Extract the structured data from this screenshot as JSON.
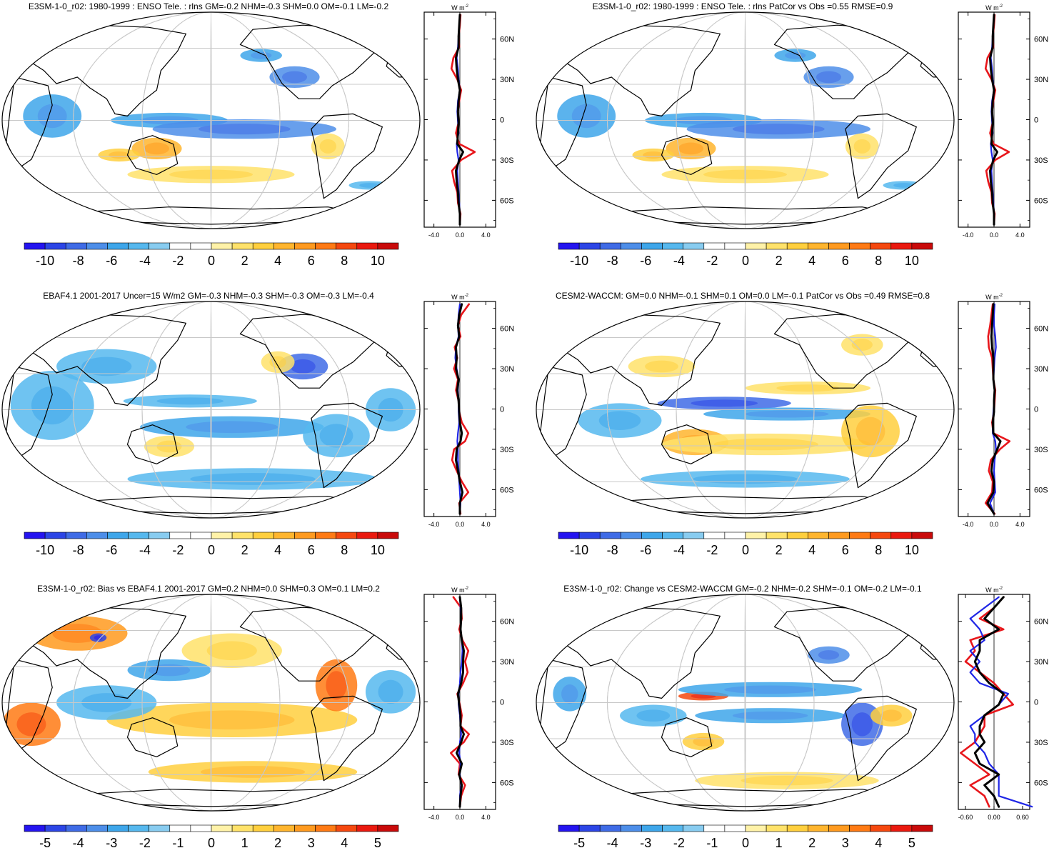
{
  "figure": {
    "units_label": "W m",
    "units_exponent": "-2",
    "colors": {
      "coastline": "#000000",
      "grid": "#c8c8c8",
      "model_line": "#e8161b",
      "reference_line": "#1f26e6",
      "mean_line": "#000000"
    }
  },
  "chart_data": [
    {
      "type": "heatmap",
      "title": "E3SM-1-0_r02: 1980-1999 : ENSO Tele. : rlns GM=-0.2 NHM=-0.3 SHM=0.0 OM=-0.1 LM=-0.2",
      "colorbar": {
        "colors": [
          "#2414f0",
          "#2c45e6",
          "#3f6be6",
          "#4d8ee9",
          "#3ea6ea",
          "#56b8ee",
          "#88ccf0",
          "#ffffff",
          "#ffffff",
          "#fff2a8",
          "#ffe26a",
          "#ffcf3e",
          "#ffb52e",
          "#ff9a1f",
          "#ff7a14",
          "#f5480f",
          "#ea190f",
          "#c90a0a"
        ],
        "tick_labels": [
          "-10",
          "-8",
          "-6",
          "-4",
          "-2",
          "0",
          "2",
          "4",
          "6",
          "8",
          "10"
        ]
      },
      "profile": {
        "lat_ticks": [
          "60N",
          "30N",
          "0",
          "30S",
          "60S"
        ],
        "x_tick_labels": [
          "-4.0",
          "0.0",
          "4.0"
        ],
        "xlim": [
          -5.5,
          5.5
        ],
        "lat": [
          78,
          70,
          62,
          54,
          46,
          38,
          30,
          22,
          14,
          6,
          -2,
          -10,
          -18,
          -24,
          -30,
          -38,
          -46,
          -54,
          -62,
          -70,
          -78
        ],
        "series": [
          {
            "name": "model",
            "values": [
              0.1,
              0.0,
              -0.2,
              -0.1,
              -1.0,
              -1.3,
              -0.4,
              0.2,
              -0.1,
              -0.3,
              -0.2,
              -0.6,
              -0.1,
              2.3,
              0.2,
              -1.2,
              -0.9,
              -0.4,
              -0.3,
              0.1,
              0.0
            ]
          },
          {
            "name": "reference",
            "values": [
              0.0,
              -0.1,
              -0.2,
              -0.3,
              -0.5,
              -0.3,
              -0.2,
              0.0,
              -0.3,
              -0.4,
              -0.3,
              -0.2,
              -0.5,
              -0.4,
              -0.2,
              -0.4,
              -0.3,
              -0.2,
              -0.1,
              0.0,
              0.0
            ]
          },
          {
            "name": "mean",
            "values": [
              0.0,
              -0.1,
              -0.2,
              -0.2,
              -0.6,
              -0.5,
              -0.3,
              0.0,
              -0.2,
              -0.3,
              -0.2,
              -0.3,
              -0.4,
              0.5,
              -0.1,
              -0.6,
              -0.5,
              -0.3,
              -0.2,
              0.0,
              0.0
            ]
          }
        ]
      }
    },
    {
      "type": "heatmap",
      "title": "E3SM-1-0_r02: 1980-1999 : ENSO Tele. : rlns PatCor vs Obs =0.55 RMSE=0.9",
      "colorbar": {
        "colors": [
          "#2414f0",
          "#2c45e6",
          "#3f6be6",
          "#4d8ee9",
          "#3ea6ea",
          "#56b8ee",
          "#88ccf0",
          "#ffffff",
          "#ffffff",
          "#fff2a8",
          "#ffe26a",
          "#ffcf3e",
          "#ffb52e",
          "#ff9a1f",
          "#ff7a14",
          "#f5480f",
          "#ea190f",
          "#c90a0a"
        ],
        "tick_labels": [
          "-10",
          "-8",
          "-6",
          "-4",
          "-2",
          "0",
          "2",
          "4",
          "6",
          "8",
          "10"
        ]
      },
      "profile": {
        "lat_ticks": [
          "60N",
          "30N",
          "0",
          "30S",
          "60S"
        ],
        "x_tick_labels": [
          "-4.0",
          "0.0",
          "4.0"
        ],
        "xlim": [
          -5.5,
          5.5
        ],
        "lat": [
          78,
          70,
          62,
          54,
          46,
          38,
          30,
          22,
          14,
          6,
          -2,
          -10,
          -18,
          -24,
          -30,
          -38,
          -46,
          -54,
          -62,
          -70,
          -78
        ],
        "series": [
          {
            "name": "model",
            "values": [
              0.1,
              0.0,
              -0.2,
              -0.1,
              -1.0,
              -1.3,
              -0.4,
              0.2,
              -0.1,
              -0.3,
              -0.2,
              -0.6,
              -0.1,
              2.3,
              0.2,
              -1.2,
              -0.9,
              -0.4,
              -0.3,
              0.1,
              0.0
            ]
          },
          {
            "name": "reference",
            "values": [
              0.0,
              -0.1,
              -0.2,
              -0.3,
              -0.5,
              -0.3,
              -0.2,
              0.0,
              -0.3,
              -0.4,
              -0.3,
              -0.2,
              -0.5,
              -0.4,
              -0.2,
              -0.4,
              -0.3,
              -0.2,
              -0.1,
              0.0,
              0.0
            ]
          },
          {
            "name": "mean",
            "values": [
              0.0,
              -0.1,
              -0.2,
              -0.2,
              -0.6,
              -0.5,
              -0.3,
              0.0,
              -0.2,
              -0.3,
              -0.2,
              -0.3,
              -0.4,
              0.5,
              -0.1,
              -0.6,
              -0.5,
              -0.3,
              -0.2,
              0.0,
              0.0
            ]
          }
        ]
      }
    },
    {
      "type": "heatmap",
      "title": "EBAF4.1 2001-2017 Uncer=15 W/m2 GM=-0.3 NHM=-0.3 SHM=-0.3 OM=-0.3 LM=-0.4",
      "colorbar": {
        "colors": [
          "#2414f0",
          "#2c45e6",
          "#3f6be6",
          "#4d8ee9",
          "#3ea6ea",
          "#56b8ee",
          "#88ccf0",
          "#ffffff",
          "#ffffff",
          "#fff2a8",
          "#ffe26a",
          "#ffcf3e",
          "#ffb52e",
          "#ff9a1f",
          "#ff7a14",
          "#f5480f",
          "#ea190f",
          "#c90a0a"
        ],
        "tick_labels": [
          "-10",
          "-8",
          "-6",
          "-4",
          "-2",
          "0",
          "2",
          "4",
          "6",
          "8",
          "10"
        ]
      },
      "profile": {
        "lat_ticks": [
          "60N",
          "30N",
          "0",
          "30S",
          "60S"
        ],
        "x_tick_labels": [
          "-4.0",
          "0.0",
          "4.0"
        ],
        "xlim": [
          -5.5,
          5.5
        ],
        "lat": [
          78,
          70,
          62,
          54,
          46,
          38,
          30,
          22,
          14,
          6,
          -2,
          -10,
          -18,
          -24,
          -30,
          -38,
          -46,
          -54,
          -62,
          -70,
          -78
        ],
        "series": [
          {
            "name": "model",
            "values": [
              1.4,
              0.2,
              -0.3,
              0.1,
              -0.8,
              -0.4,
              -0.9,
              -0.3,
              -0.6,
              -0.2,
              -0.1,
              0.3,
              1.3,
              0.8,
              -0.9,
              -1.2,
              -0.5,
              0.3,
              1.3,
              -0.1,
              0.1
            ]
          },
          {
            "name": "reference",
            "values": [
              0.0,
              -0.2,
              -0.3,
              -0.2,
              -0.6,
              -0.7,
              -0.5,
              -0.2,
              -0.3,
              -0.2,
              -0.2,
              -0.1,
              -0.3,
              -0.4,
              -0.3,
              -0.3,
              -0.2,
              -0.1,
              0.0,
              0.1,
              0.0
            ]
          },
          {
            "name": "mean",
            "values": [
              0.3,
              -0.1,
              -0.3,
              -0.1,
              -0.6,
              -0.5,
              -0.6,
              -0.2,
              -0.4,
              -0.2,
              -0.1,
              0.0,
              0.3,
              0.1,
              -0.5,
              -0.6,
              -0.3,
              0.0,
              0.4,
              0.0,
              0.0
            ]
          }
        ]
      }
    },
    {
      "type": "heatmap",
      "title": "CESM2-WACCM: GM=0.0 NHM=-0.1 SHM=0.1 OM=0.0 LM=-0.1 PatCor vs Obs =0.49 RMSE=0.8",
      "colorbar": {
        "colors": [
          "#2414f0",
          "#2c45e6",
          "#3f6be6",
          "#4d8ee9",
          "#3ea6ea",
          "#56b8ee",
          "#88ccf0",
          "#ffffff",
          "#ffffff",
          "#fff2a8",
          "#ffe26a",
          "#ffcf3e",
          "#ffb52e",
          "#ff9a1f",
          "#ff7a14",
          "#f5480f",
          "#ea190f",
          "#c90a0a"
        ],
        "tick_labels": [
          "-10",
          "-8",
          "-6",
          "-4",
          "-2",
          "0",
          "2",
          "4",
          "6",
          "8",
          "10"
        ]
      },
      "profile": {
        "lat_ticks": [
          "60N",
          "30N",
          "0",
          "30S",
          "60S"
        ],
        "x_tick_labels": [
          "-4.0",
          "0.0",
          "4.0"
        ],
        "xlim": [
          -5.5,
          5.5
        ],
        "lat": [
          78,
          70,
          62,
          54,
          46,
          38,
          30,
          22,
          14,
          6,
          -2,
          -10,
          -18,
          -24,
          -30,
          -38,
          -46,
          -54,
          -62,
          -70,
          -78
        ],
        "series": [
          {
            "name": "model",
            "values": [
              -0.2,
              -0.4,
              -0.6,
              -0.9,
              -0.8,
              -0.3,
              -0.2,
              -0.1,
              0.2,
              0.1,
              0.0,
              -0.3,
              -0.1,
              2.4,
              0.9,
              -0.5,
              -0.8,
              -0.2,
              -0.3,
              -1.3,
              0.1
            ]
          },
          {
            "name": "reference",
            "values": [
              0.1,
              0.0,
              0.0,
              0.2,
              0.3,
              0.1,
              0.0,
              -0.1,
              0.1,
              0.0,
              -0.1,
              -0.2,
              -0.2,
              0.2,
              0.3,
              0.1,
              0.0,
              0.1,
              0.2,
              -0.6,
              0.0
            ]
          },
          {
            "name": "mean",
            "values": [
              -0.1,
              -0.2,
              -0.3,
              -0.4,
              -0.3,
              -0.1,
              -0.1,
              -0.1,
              0.1,
              0.0,
              0.0,
              -0.2,
              -0.1,
              1.0,
              0.5,
              -0.2,
              -0.4,
              0.0,
              -0.1,
              -1.0,
              0.0
            ]
          }
        ]
      }
    },
    {
      "type": "heatmap",
      "title": "E3SM-1-0_r02: Bias vs EBAF4.1 2001-2017 GM=0.2 NHM=0.0 SHM=0.3 OM=0.1 LM=0.2",
      "colorbar": {
        "colors": [
          "#2414f0",
          "#2c45e6",
          "#3f6be6",
          "#4d8ee9",
          "#3ea6ea",
          "#56b8ee",
          "#88ccf0",
          "#ffffff",
          "#ffffff",
          "#fff2a8",
          "#ffe26a",
          "#ffcf3e",
          "#ffb52e",
          "#ff9a1f",
          "#ff7a14",
          "#f5480f",
          "#ea190f",
          "#c90a0a"
        ],
        "tick_labels": [
          "-5",
          "-4",
          "-3",
          "-2",
          "-1",
          "0",
          "1",
          "2",
          "3",
          "4",
          "5"
        ]
      },
      "profile": {
        "lat_ticks": [
          "60N",
          "30N",
          "0",
          "30S",
          "60S"
        ],
        "x_tick_labels": [
          "-4.0",
          "0.0",
          "4.0"
        ],
        "xlim": [
          -5.5,
          5.5
        ],
        "lat": [
          78,
          70,
          62,
          54,
          46,
          38,
          30,
          22,
          14,
          6,
          -2,
          -10,
          -18,
          -24,
          -30,
          -38,
          -46,
          -54,
          -62,
          -70,
          -78
        ],
        "series": [
          {
            "name": "model",
            "values": [
              -1.0,
              0.2,
              0.3,
              -0.1,
              0.4,
              1.3,
              0.8,
              1.2,
              0.5,
              -0.4,
              0.0,
              0.3,
              0.1,
              1.4,
              0.6,
              -1.4,
              0.0,
              -0.2,
              0.8,
              0.2,
              0.0
            ]
          },
          {
            "name": "reference",
            "values": [
              0.0,
              0.1,
              0.2,
              0.1,
              0.3,
              0.4,
              0.3,
              0.1,
              0.0,
              -0.2,
              -0.2,
              0.0,
              0.1,
              0.2,
              0.0,
              -0.1,
              0.1,
              0.0,
              0.2,
              0.0,
              0.0
            ]
          },
          {
            "name": "mean",
            "values": [
              0.0,
              0.2,
              0.2,
              0.1,
              0.3,
              0.6,
              0.5,
              0.5,
              0.2,
              -0.3,
              -0.1,
              0.1,
              0.1,
              0.6,
              0.2,
              -0.5,
              0.3,
              -0.1,
              0.3,
              0.1,
              0.0
            ]
          }
        ]
      }
    },
    {
      "type": "heatmap",
      "title": "E3SM-1-0_r02: Change vs CESM2-WACCM GM=-0.2 NHM=-0.2 SHM=-0.1 OM=-0.2 LM=-0.1",
      "colorbar": {
        "colors": [
          "#2414f0",
          "#2c45e6",
          "#3f6be6",
          "#4d8ee9",
          "#3ea6ea",
          "#56b8ee",
          "#88ccf0",
          "#ffffff",
          "#ffffff",
          "#fff2a8",
          "#ffe26a",
          "#ffcf3e",
          "#ffb52e",
          "#ff9a1f",
          "#ff7a14",
          "#f5480f",
          "#ea190f",
          "#c90a0a"
        ],
        "tick_labels": [
          "-5",
          "-4",
          "-3",
          "-2",
          "-1",
          "0",
          "1",
          "2",
          "3",
          "4",
          "5"
        ]
      },
      "profile": {
        "lat_ticks": [
          "60N",
          "30N",
          "0",
          "30S",
          "60S"
        ],
        "x_tick_labels": [
          "-0.60",
          "0.00",
          "0.60"
        ],
        "xlim": [
          -0.75,
          0.75
        ],
        "lat": [
          78,
          70,
          62,
          54,
          46,
          38,
          30,
          22,
          14,
          6,
          -2,
          -10,
          -18,
          -24,
          -30,
          -38,
          -46,
          -54,
          -62,
          -70,
          -78
        ],
        "series": [
          {
            "name": "model",
            "values": [
              0.2,
              0.0,
              -0.3,
              0.2,
              -0.5,
              -0.4,
              -0.6,
              -0.3,
              0.0,
              0.2,
              0.4,
              -0.2,
              -0.2,
              -0.3,
              -0.4,
              -0.7,
              -0.4,
              -0.1,
              -0.5,
              -0.2,
              -0.1
            ]
          },
          {
            "name": "reference",
            "values": [
              0.1,
              -0.2,
              -0.5,
              -0.3,
              -0.2,
              -0.5,
              -0.3,
              -0.5,
              -0.3,
              0.3,
              0.1,
              -0.2,
              -0.5,
              -0.4,
              -0.4,
              -0.2,
              -0.1,
              0.1,
              0.1,
              0.1,
              0.8
            ]
          },
          {
            "name": "mean",
            "values": [
              0.2,
              0.0,
              -0.2,
              0.1,
              -0.3,
              -0.3,
              -0.4,
              -0.3,
              -0.1,
              0.2,
              0.1,
              -0.2,
              -0.3,
              -0.3,
              -0.2,
              -0.4,
              -0.3,
              0.1,
              -0.2,
              0.0,
              0.1
            ]
          }
        ]
      }
    }
  ]
}
